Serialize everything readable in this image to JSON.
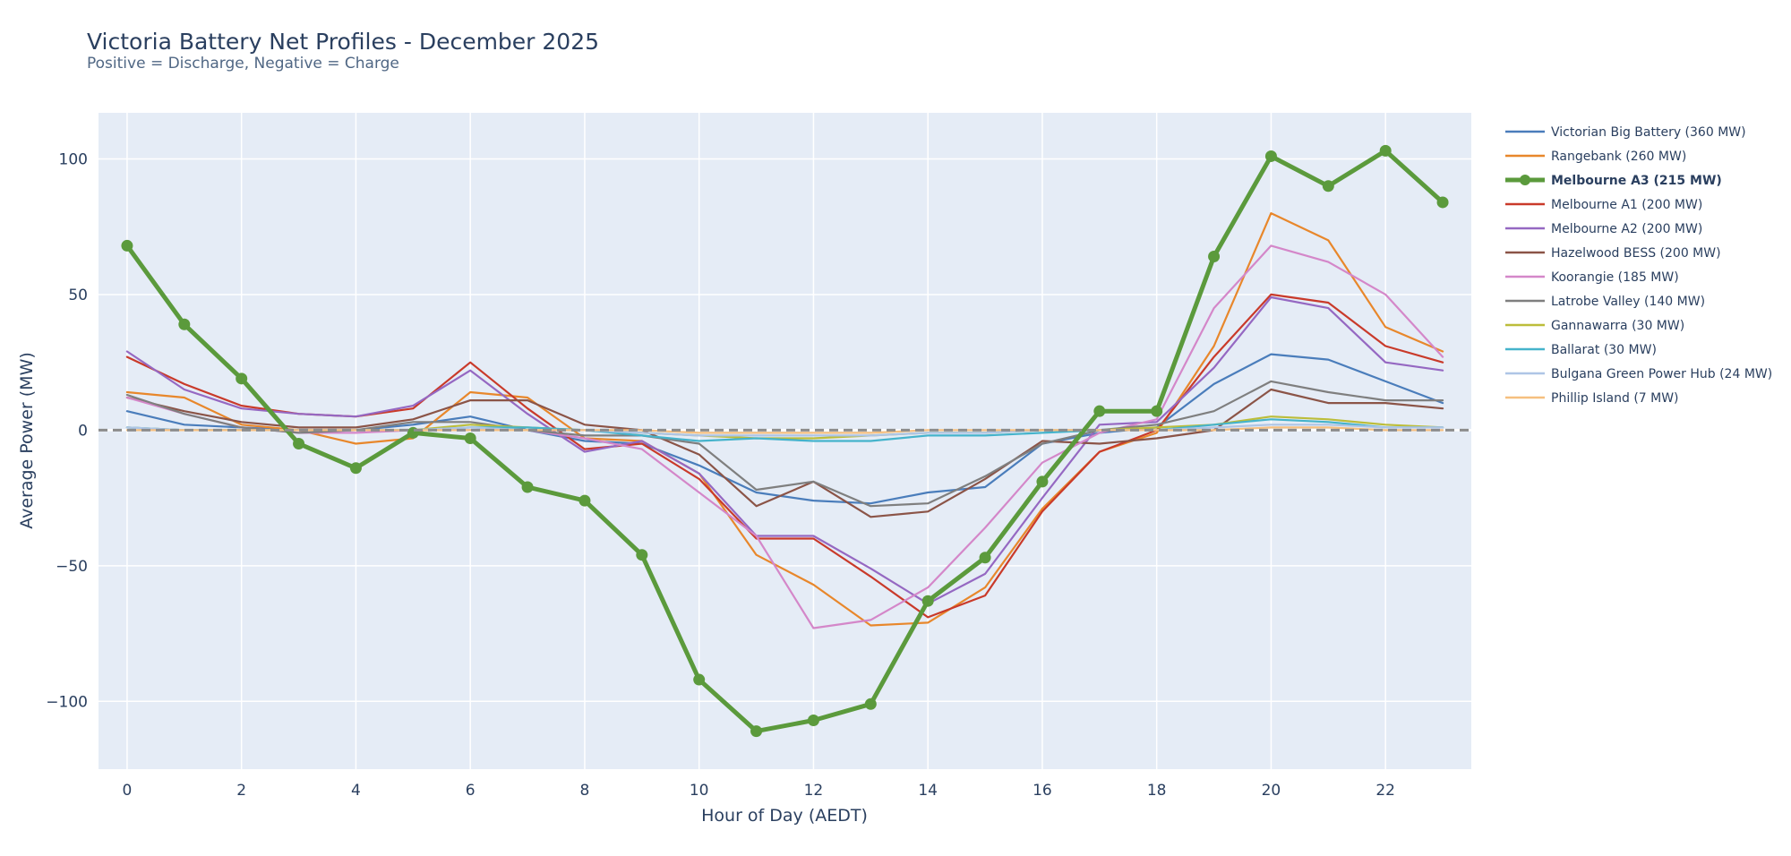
{
  "chart_data": {
    "type": "line",
    "title": "Victoria Battery Net Profiles - December 2025",
    "subtitle": "Positive = Discharge, Negative = Charge",
    "xlabel": "Hour of Day (AEDT)",
    "ylabel": "Average Power (MW)",
    "xlim": [
      -0.5,
      23.5
    ],
    "ylim": [
      -125,
      117
    ],
    "x_ticks": [
      0,
      2,
      4,
      6,
      8,
      10,
      12,
      14,
      16,
      18,
      20,
      22
    ],
    "y_ticks": [
      -100,
      -50,
      0,
      50,
      100
    ],
    "x_tick_labels": [
      "0",
      "2",
      "4",
      "6",
      "8",
      "10",
      "12",
      "14",
      "16",
      "18",
      "20",
      "22"
    ],
    "y_tick_labels": [
      "−100",
      "−50",
      "0",
      "50",
      "100"
    ],
    "grid": true,
    "zero_line": "dashed",
    "legend_position": "right",
    "x": [
      0,
      1,
      2,
      3,
      4,
      5,
      6,
      7,
      8,
      9,
      10,
      11,
      12,
      13,
      14,
      15,
      16,
      17,
      18,
      19,
      20,
      21,
      22,
      23
    ],
    "series": [
      {
        "name": "Victorian Big Battery (360 MW)",
        "color": "#4a7dbb",
        "highlight": false,
        "values": [
          7,
          2,
          1,
          0,
          0,
          2,
          5,
          0,
          -4,
          -5,
          -13,
          -23,
          -26,
          -27,
          -23,
          -21,
          -5,
          -1,
          1,
          17,
          28,
          26,
          18,
          10
        ]
      },
      {
        "name": "Rangebank (260 MW)",
        "color": "#e8872b",
        "highlight": false,
        "values": [
          14,
          12,
          2,
          0,
          -5,
          -3,
          14,
          12,
          -3,
          -4,
          -16,
          -46,
          -57,
          -72,
          -71,
          -58,
          -29,
          -8,
          -1,
          31,
          80,
          70,
          38,
          29
        ]
      },
      {
        "name": "Melbourne A3 (215 MW)",
        "color": "#5b9a3c",
        "highlight": true,
        "values": [
          68,
          39,
          19,
          -5,
          -14,
          -1,
          -3,
          -21,
          -26,
          -46,
          -92,
          -111,
          -107,
          -101,
          -63,
          -47,
          -19,
          7,
          7,
          64,
          101,
          90,
          103,
          84
        ]
      },
      {
        "name": "Melbourne A1 (200 MW)",
        "color": "#c93a2a",
        "highlight": false,
        "values": [
          27,
          17,
          9,
          6,
          5,
          8,
          25,
          8,
          -7,
          -5,
          -18,
          -40,
          -40,
          -54,
          -69,
          -61,
          -30,
          -8,
          0,
          27,
          50,
          47,
          31,
          25
        ]
      },
      {
        "name": "Melbourne A2 (200 MW)",
        "color": "#9568c2",
        "highlight": false,
        "values": [
          29,
          15,
          8,
          6,
          5,
          9,
          22,
          6,
          -8,
          -4,
          -16,
          -39,
          -39,
          -51,
          -64,
          -53,
          -25,
          2,
          3,
          23,
          49,
          45,
          25,
          22
        ]
      },
      {
        "name": "Hazelwood BESS (200 MW)",
        "color": "#8b5447",
        "highlight": false,
        "values": [
          12,
          7,
          3,
          1,
          1,
          4,
          11,
          11,
          2,
          0,
          -9,
          -28,
          -19,
          -32,
          -30,
          -18,
          -4,
          -5,
          -3,
          0,
          15,
          10,
          10,
          8
        ]
      },
      {
        "name": "Koorangie (185 MW)",
        "color": "#d487c9",
        "highlight": false,
        "values": [
          12,
          6,
          1,
          -1,
          -1,
          0,
          0,
          0,
          -3,
          -7,
          -23,
          -39,
          -73,
          -70,
          -58,
          -36,
          -12,
          -1,
          4,
          45,
          68,
          62,
          50,
          27
        ]
      },
      {
        "name": "Latrobe Valley (140 MW)",
        "color": "#7f7f7f",
        "highlight": false,
        "values": [
          13,
          6,
          1,
          -1,
          0,
          3,
          3,
          0,
          -2,
          -2,
          -5,
          -22,
          -19,
          -28,
          -27,
          -17,
          -5,
          0,
          2,
          7,
          18,
          14,
          11,
          11
        ]
      },
      {
        "name": "Gannawarra (30 MW)",
        "color": "#bcbd3a",
        "highlight": false,
        "values": [
          1,
          0,
          0,
          0,
          0,
          0,
          2,
          1,
          0,
          -1,
          -2,
          -3,
          -3,
          -2,
          -1,
          -1,
          0,
          0,
          1,
          2,
          5,
          4,
          2,
          1
        ]
      },
      {
        "name": "Ballarat (30 MW)",
        "color": "#45b3cb",
        "highlight": false,
        "values": [
          1,
          0,
          0,
          0,
          0,
          0,
          1,
          1,
          0,
          -2,
          -4,
          -3,
          -4,
          -4,
          -2,
          -2,
          -1,
          0,
          0,
          2,
          4,
          3,
          1,
          1
        ]
      },
      {
        "name": "Bulgana Green Power Hub (24 MW)",
        "color": "#aec5e6",
        "highlight": false,
        "values": [
          1,
          0,
          0,
          0,
          0,
          0,
          1,
          0,
          0,
          -1,
          -2,
          -2,
          -2,
          -2,
          -1,
          -1,
          0,
          0,
          0,
          1,
          2,
          2,
          1,
          1
        ]
      },
      {
        "name": "Phillip Island (7 MW)",
        "color": "#f6bf7f",
        "highlight": false,
        "values": [
          0,
          0,
          0,
          0,
          0,
          0,
          0,
          0,
          0,
          0,
          -1,
          -1,
          -1,
          -1,
          0,
          0,
          0,
          0,
          0,
          0,
          1,
          1,
          0,
          0
        ]
      }
    ]
  }
}
